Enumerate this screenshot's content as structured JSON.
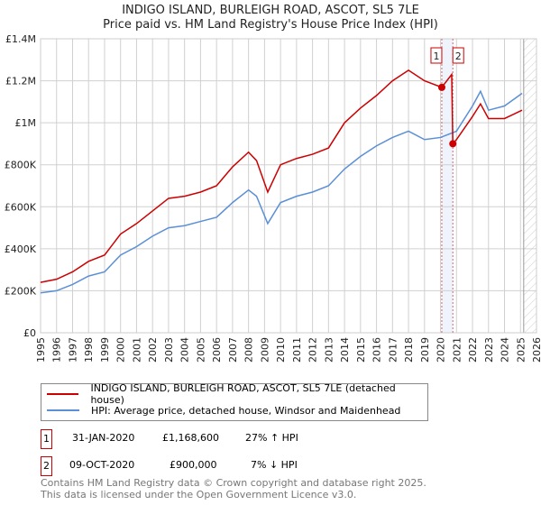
{
  "title": "INDIGO ISLAND, BURLEIGH ROAD, ASCOT, SL5 7LE",
  "subtitle": "Price paid vs. HM Land Registry's House Price Index (HPI)",
  "chart_data": {
    "type": "line",
    "xlim": [
      1995,
      2026
    ],
    "ylim": [
      0,
      1400000
    ],
    "x_ticks": [
      "1995",
      "1996",
      "1997",
      "1998",
      "1999",
      "2000",
      "2001",
      "2002",
      "2003",
      "2004",
      "2005",
      "2006",
      "2007",
      "2008",
      "2009",
      "2010",
      "2011",
      "2012",
      "2013",
      "2014",
      "2015",
      "2016",
      "2017",
      "2018",
      "2019",
      "2020",
      "2021",
      "2022",
      "2023",
      "2024",
      "2025",
      "2026"
    ],
    "y_ticks": [
      {
        "v": 0,
        "label": "£0"
      },
      {
        "v": 200000,
        "label": "£200K"
      },
      {
        "v": 400000,
        "label": "£400K"
      },
      {
        "v": 600000,
        "label": "£600K"
      },
      {
        "v": 800000,
        "label": "£800K"
      },
      {
        "v": 1000000,
        "label": "£1M"
      },
      {
        "v": 1200000,
        "label": "£1.2M"
      },
      {
        "v": 1400000,
        "label": "£1.4M"
      }
    ],
    "grid": true,
    "forecast_from": 2025.2,
    "series": [
      {
        "name": "INDIGO ISLAND, BURLEIGH ROAD, ASCOT, SL5 7LE (detached house)",
        "color": "#cc0000",
        "x": [
          1995,
          1996,
          1997,
          1998,
          1999,
          2000,
          2001,
          2002,
          2003,
          2004,
          2005,
          2006,
          2007,
          2008,
          2008.5,
          2009.2,
          2010,
          2011,
          2012,
          2013,
          2014,
          2015,
          2016,
          2017,
          2018,
          2019,
          2020.08,
          2020.7,
          2020.77,
          2021,
          2022,
          2022.5,
          2023,
          2024,
          2025.1
        ],
        "y": [
          240000,
          255000,
          290000,
          340000,
          370000,
          470000,
          520000,
          580000,
          640000,
          650000,
          670000,
          700000,
          790000,
          860000,
          820000,
          670000,
          800000,
          830000,
          850000,
          880000,
          1000000,
          1070000,
          1130000,
          1200000,
          1250000,
          1200000,
          1168600,
          1230000,
          900000,
          920000,
          1030000,
          1090000,
          1020000,
          1020000,
          1060000
        ]
      },
      {
        "name": "HPI: Average price, detached house, Windsor and Maidenhead",
        "color": "#5b8fd6",
        "x": [
          1995,
          1996,
          1997,
          1998,
          1999,
          2000,
          2001,
          2002,
          2003,
          2004,
          2005,
          2006,
          2007,
          2008,
          2008.5,
          2009.2,
          2010,
          2011,
          2012,
          2013,
          2014,
          2015,
          2016,
          2017,
          2018,
          2019,
          2020,
          2021,
          2022,
          2022.5,
          2023,
          2024,
          2025.1
        ],
        "y": [
          190000,
          200000,
          230000,
          270000,
          290000,
          370000,
          410000,
          460000,
          500000,
          510000,
          530000,
          550000,
          620000,
          680000,
          650000,
          520000,
          620000,
          650000,
          670000,
          700000,
          780000,
          840000,
          890000,
          930000,
          960000,
          920000,
          930000,
          960000,
          1080000,
          1150000,
          1060000,
          1080000,
          1140000
        ]
      }
    ],
    "sales": [
      {
        "label": "1",
        "x": 2020.08,
        "y": 1168600
      },
      {
        "label": "2",
        "x": 2020.77,
        "y": 900000
      }
    ]
  },
  "legend": {
    "items": [
      {
        "label": "INDIGO ISLAND, BURLEIGH ROAD, ASCOT, SL5 7LE (detached house)",
        "color": "#cc0000"
      },
      {
        "label": "HPI: Average price, detached house, Windsor and Maidenhead",
        "color": "#5b8fd6"
      }
    ]
  },
  "table": [
    {
      "num": "1",
      "date": "31-JAN-2020",
      "price": "£1,168,600",
      "hpi": "27% ↑ HPI"
    },
    {
      "num": "2",
      "date": "09-OCT-2020",
      "price": "£900,000",
      "hpi": "7% ↓ HPI"
    }
  ],
  "footer": [
    "Contains HM Land Registry data © Crown copyright and database right 2025.",
    "This data is licensed under the Open Government Licence v3.0."
  ]
}
